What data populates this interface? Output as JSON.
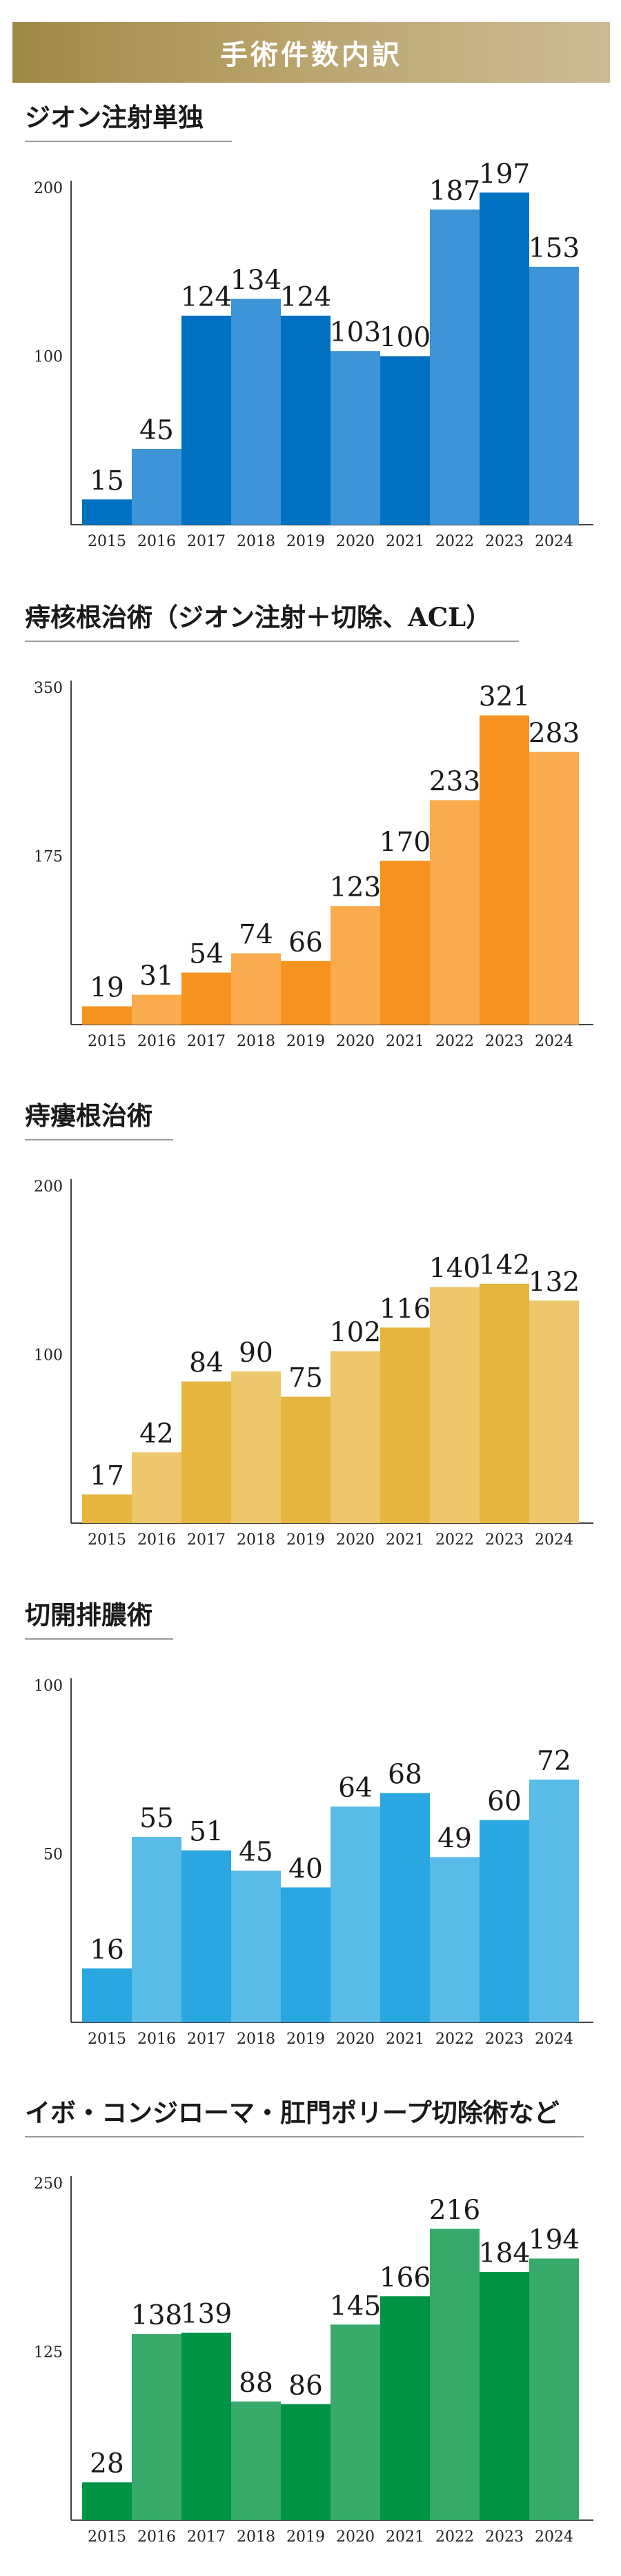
{
  "header": {
    "title": "手術件数内訳"
  },
  "chart_data": [
    {
      "type": "bar",
      "title": "ジオン注射単独",
      "categories": [
        "2015",
        "2016",
        "2017",
        "2018",
        "2019",
        "2020",
        "2021",
        "2022",
        "2023",
        "2024"
      ],
      "values": [
        15,
        45,
        124,
        134,
        124,
        103,
        100,
        187,
        197,
        153
      ],
      "yticks": [
        100,
        200
      ],
      "ylim": [
        0,
        200
      ],
      "colors": {
        "dark": "#0071c0",
        "light": "#3d94d6"
      }
    },
    {
      "type": "bar",
      "title": "痔核根治術（ジオン注射＋切除、ACL）",
      "categories": [
        "2015",
        "2016",
        "2017",
        "2018",
        "2019",
        "2020",
        "2021",
        "2022",
        "2023",
        "2024"
      ],
      "values": [
        19,
        31,
        54,
        74,
        66,
        123,
        170,
        233,
        321,
        283
      ],
      "yticks": [
        175,
        350
      ],
      "ylim": [
        0,
        350
      ],
      "colors": {
        "dark": "#f6931e",
        "light": "#f9ab4e"
      }
    },
    {
      "type": "bar",
      "title": "痔瘻根治術",
      "categories": [
        "2015",
        "2016",
        "2017",
        "2018",
        "2019",
        "2020",
        "2021",
        "2022",
        "2023",
        "2024"
      ],
      "values": [
        17,
        42,
        84,
        90,
        75,
        102,
        116,
        140,
        142,
        132
      ],
      "yticks": [
        100,
        200
      ],
      "ylim": [
        0,
        200
      ],
      "colors": {
        "dark": "#e6b53e",
        "light": "#eec76d"
      }
    },
    {
      "type": "bar",
      "title": "切開排膿術",
      "categories": [
        "2015",
        "2016",
        "2017",
        "2018",
        "2019",
        "2020",
        "2021",
        "2022",
        "2023",
        "2024"
      ],
      "values": [
        16,
        55,
        51,
        45,
        40,
        64,
        68,
        49,
        60,
        72
      ],
      "yticks": [
        50,
        100
      ],
      "ylim": [
        0,
        100
      ],
      "colors": {
        "dark": "#2aa6e1",
        "light": "#58bbe8"
      }
    },
    {
      "type": "bar",
      "title": "イボ・コンジローマ・肛門ポリープ切除術など",
      "categories": [
        "2015",
        "2016",
        "2017",
        "2018",
        "2019",
        "2020",
        "2021",
        "2022",
        "2023",
        "2024"
      ],
      "values": [
        28,
        138,
        139,
        88,
        86,
        145,
        166,
        216,
        184,
        194
      ],
      "yticks": [
        125,
        250
      ],
      "ylim": [
        0,
        250
      ],
      "colors": {
        "dark": "#009245",
        "light": "#36a96b"
      }
    }
  ]
}
